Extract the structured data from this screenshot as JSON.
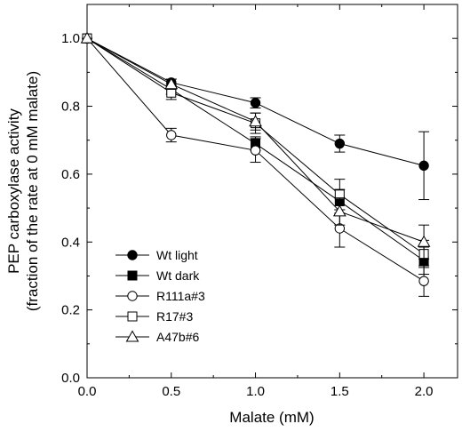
{
  "chart_data": {
    "type": "line",
    "xlabel": "Malate (mM)",
    "ylabel_lines": [
      "PEP carboxylase activity",
      "(fraction of the rate at 0 mM malate)"
    ],
    "xlim": [
      0,
      2.2
    ],
    "ylim": [
      0,
      1.1
    ],
    "xticks": [
      "0.0",
      "0.5",
      "1.0",
      "1.5",
      "2.0"
    ],
    "yticks": [
      "0.0",
      "0.2",
      "0.4",
      "0.6",
      "0.8",
      "1.0"
    ],
    "grid": false,
    "legend_position": "bottom-left",
    "x": [
      0,
      0.5,
      1.0,
      1.5,
      2.0
    ],
    "series": [
      {
        "name": "Wt light",
        "marker": "circle",
        "filled": true,
        "values": [
          1.0,
          0.87,
          0.81,
          0.69,
          0.625
        ],
        "errors": [
          0,
          0.01,
          0.015,
          0.025,
          0.1
        ]
      },
      {
        "name": "Wt dark",
        "marker": "square",
        "filled": true,
        "values": [
          1.0,
          0.85,
          0.69,
          0.52,
          0.345
        ],
        "errors": [
          0,
          0.015,
          0.02,
          0.035,
          0.04
        ]
      },
      {
        "name": "R111a#3",
        "marker": "circle",
        "filled": false,
        "values": [
          1.0,
          0.715,
          0.67,
          0.44,
          0.285
        ],
        "errors": [
          0,
          0.02,
          0.035,
          0.055,
          0.045
        ]
      },
      {
        "name": "R17#3",
        "marker": "square",
        "filled": false,
        "values": [
          1.0,
          0.84,
          0.75,
          0.54,
          0.365
        ],
        "errors": [
          0,
          0.02,
          0.03,
          0.045,
          0.04
        ]
      },
      {
        "name": "A47b#6",
        "marker": "triangle",
        "filled": false,
        "values": [
          1.0,
          0.865,
          0.755,
          0.49,
          0.4
        ],
        "errors": [
          0,
          0.015,
          0.025,
          0.04,
          0.05
        ]
      }
    ]
  }
}
